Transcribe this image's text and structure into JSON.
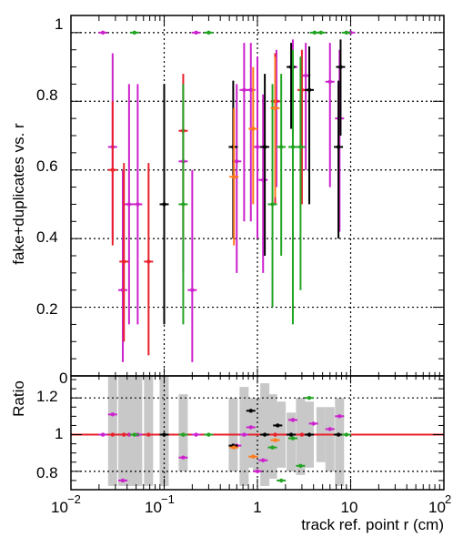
{
  "chart_data": [
    {
      "type": "scatter",
      "subtype": "error-bar",
      "ylabel": "fake+duplicates vs. r",
      "x_scale": "log",
      "xlim": [
        0.01,
        100
      ],
      "ylim": [
        0,
        1.05
      ],
      "grid": true,
      "x_tick_labels": [
        "10",
        "−2",
        "10",
        "−1",
        "1",
        "10",
        "10",
        "2"
      ],
      "y_tick_labels": [
        "0",
        "0.2",
        "0.4",
        "0.6",
        "0.8",
        "1"
      ],
      "series": [
        {
          "color": "#cc22cc",
          "points": [
            {
              "x": 0.022,
              "y": 1.0
            },
            {
              "x": 0.028,
              "y": 0.667,
              "lo": 0.4,
              "hi": 0.94
            },
            {
              "x": 0.036,
              "y": 0.25,
              "lo": 0.04,
              "hi": 0.6
            },
            {
              "x": 0.042,
              "y": 0.5,
              "lo": 0.15,
              "hi": 0.85
            },
            {
              "x": 0.052,
              "y": 0.5,
              "lo": 0.15,
              "hi": 0.85
            },
            {
              "x": 0.16,
              "y": 0.625,
              "lo": 0.3,
              "hi": 0.85
            },
            {
              "x": 0.2,
              "y": 0.25,
              "lo": 0.04,
              "hi": 0.6
            },
            {
              "x": 0.22,
              "y": 1.0
            },
            {
              "x": 0.6,
              "y": 0.625,
              "lo": 0.3,
              "hi": 0.85
            },
            {
              "x": 0.72,
              "y": 0.833,
              "lo": 0.45,
              "hi": 0.97
            },
            {
              "x": 0.85,
              "y": 0.833,
              "lo": 0.45,
              "hi": 0.97
            },
            {
              "x": 1.0,
              "y": 0.667,
              "lo": 0.4,
              "hi": 0.93
            },
            {
              "x": 1.15,
              "y": 0.571,
              "lo": 0.3,
              "hi": 0.82
            },
            {
              "x": 1.6,
              "y": 0.8,
              "lo": 0.55,
              "hi": 0.95
            },
            {
              "x": 2.4,
              "y": 0.9,
              "lo": 0.7,
              "hi": 0.98
            },
            {
              "x": 3.3,
              "y": 0.875,
              "lo": 0.6,
              "hi": 0.97
            },
            {
              "x": 6.0,
              "y": 0.857,
              "lo": 0.55,
              "hi": 0.97
            },
            {
              "x": 7.6,
              "y": 0.75,
              "lo": 0.42,
              "hi": 0.95
            },
            {
              "x": 10.0,
              "y": 1.0
            }
          ]
        },
        {
          "color": "#e8202a",
          "points": [
            {
              "x": 0.028,
              "y": 0.6,
              "lo": 0.38,
              "hi": 0.8
            },
            {
              "x": 0.037,
              "y": 0.333,
              "lo": 0.1,
              "hi": 0.62
            },
            {
              "x": 0.068,
              "y": 0.333,
              "lo": 0.06,
              "hi": 0.62
            },
            {
              "x": 0.16,
              "y": 0.714,
              "lo": 0.4,
              "hi": 0.88
            },
            {
              "x": 1.55,
              "y": 0.8,
              "lo": 0.5,
              "hi": 0.94
            },
            {
              "x": 3.0,
              "y": 0.833,
              "lo": 0.5,
              "hi": 0.95
            }
          ]
        },
        {
          "color": "#000000",
          "points": [
            {
              "x": 0.1,
              "y": 0.5,
              "lo": 0.15,
              "hi": 0.85
            },
            {
              "x": 0.55,
              "y": 0.667,
              "lo": 0.4,
              "hi": 0.86
            },
            {
              "x": 1.2,
              "y": 0.667,
              "lo": 0.35,
              "hi": 0.88
            },
            {
              "x": 2.3,
              "y": 0.9,
              "lo": 0.72,
              "hi": 0.97
            },
            {
              "x": 3.6,
              "y": 0.833,
              "lo": 0.5,
              "hi": 0.96
            },
            {
              "x": 7.4,
              "y": 0.667,
              "lo": 0.4,
              "hi": 0.86
            },
            {
              "x": 7.8,
              "y": 0.9,
              "lo": 0.7,
              "hi": 0.98
            }
          ]
        },
        {
          "color": "#22a422",
          "points": [
            {
              "x": 0.048,
              "y": 1.0
            },
            {
              "x": 0.16,
              "y": 0.5,
              "lo": 0.15,
              "hi": 0.85
            },
            {
              "x": 0.3,
              "y": 1.0
            },
            {
              "x": 1.45,
              "y": 0.5,
              "lo": 0.2,
              "hi": 0.85
            },
            {
              "x": 1.8,
              "y": 0.667,
              "lo": 0.35,
              "hi": 0.88
            },
            {
              "x": 2.4,
              "y": 0.667,
              "lo": 0.15,
              "hi": 0.95
            },
            {
              "x": 2.9,
              "y": 0.667,
              "lo": 0.25,
              "hi": 0.93
            },
            {
              "x": 4.1,
              "y": 1.0
            },
            {
              "x": 4.8,
              "y": 1.0
            },
            {
              "x": 9.0,
              "y": 1.0
            }
          ]
        },
        {
          "color": "#ff7a1a",
          "points": [
            {
              "x": 0.56,
              "y": 0.58,
              "lo": 0.38,
              "hi": 0.78
            },
            {
              "x": 0.9,
              "y": 0.72,
              "lo": 0.5,
              "hi": 0.9
            },
            {
              "x": 1.55,
              "y": 0.78,
              "lo": 0.52,
              "hi": 0.93
            }
          ]
        }
      ]
    },
    {
      "type": "scatter",
      "subtype": "ratio",
      "ylabel": "Ratio",
      "xlabel": "track ref. point r (cm)",
      "x_scale": "log",
      "xlim": [
        0.01,
        100
      ],
      "ylim": [
        0.7,
        1.32
      ],
      "grid": true,
      "reference_line": 1.0,
      "y_tick_labels": [
        "0.8",
        "1",
        "1.2"
      ],
      "band_color": "#c8c8c8",
      "bands": [
        {
          "x": 0.028,
          "lo": 0.72,
          "hi": 1.32
        },
        {
          "x": 0.036,
          "lo": 0.72,
          "hi": 1.32
        },
        {
          "x": 0.042,
          "lo": 0.72,
          "hi": 1.32
        },
        {
          "x": 0.052,
          "lo": 0.72,
          "hi": 1.32
        },
        {
          "x": 0.068,
          "lo": 0.72,
          "hi": 1.32
        },
        {
          "x": 0.1,
          "lo": 0.72,
          "hi": 1.32
        },
        {
          "x": 0.16,
          "lo": 0.8,
          "hi": 1.22
        },
        {
          "x": 0.55,
          "lo": 0.8,
          "hi": 1.2
        },
        {
          "x": 0.72,
          "lo": 0.72,
          "hi": 1.26
        },
        {
          "x": 0.85,
          "lo": 0.82,
          "hi": 1.2
        },
        {
          "x": 1.0,
          "lo": 0.8,
          "hi": 1.2
        },
        {
          "x": 1.2,
          "lo": 0.72,
          "hi": 1.28
        },
        {
          "x": 1.45,
          "lo": 0.76,
          "hi": 1.22
        },
        {
          "x": 1.8,
          "lo": 0.82,
          "hi": 1.18
        },
        {
          "x": 2.3,
          "lo": 0.8,
          "hi": 1.12
        },
        {
          "x": 2.9,
          "lo": 0.78,
          "hi": 1.2
        },
        {
          "x": 3.6,
          "lo": 0.82,
          "hi": 1.18
        },
        {
          "x": 4.8,
          "lo": 0.85,
          "hi": 1.15
        },
        {
          "x": 6.0,
          "lo": 0.8,
          "hi": 1.15
        },
        {
          "x": 7.6,
          "lo": 0.72,
          "hi": 1.2
        }
      ],
      "series": [
        {
          "color": "#cc22cc",
          "points": [
            {
              "x": 0.022,
              "y": 1.0
            },
            {
              "x": 0.028,
              "y": 1.11
            },
            {
              "x": 0.036,
              "y": 0.75
            },
            {
              "x": 0.042,
              "y": 1.0
            },
            {
              "x": 0.052,
              "y": 1.0
            },
            {
              "x": 0.16,
              "y": 0.875
            },
            {
              "x": 0.22,
              "y": 1.0
            },
            {
              "x": 0.6,
              "y": 0.94
            },
            {
              "x": 0.72,
              "y": 1.0
            },
            {
              "x": 0.85,
              "y": 1.04
            },
            {
              "x": 1.0,
              "y": 0.8
            },
            {
              "x": 1.15,
              "y": 0.86
            },
            {
              "x": 2.4,
              "y": 1.08
            },
            {
              "x": 4.0,
              "y": 1.06
            },
            {
              "x": 6.0,
              "y": 1.03
            },
            {
              "x": 7.6,
              "y": 1.1
            }
          ]
        },
        {
          "color": "#e8202a",
          "points": [
            {
              "x": 0.028,
              "y": 1.0
            },
            {
              "x": 0.037,
              "y": 1.0
            },
            {
              "x": 0.068,
              "y": 1.0
            },
            {
              "x": 0.16,
              "y": 1.0
            },
            {
              "x": 1.55,
              "y": 1.0
            },
            {
              "x": 3.0,
              "y": 1.0
            }
          ]
        },
        {
          "color": "#000000",
          "points": [
            {
              "x": 0.1,
              "y": 1.0
            },
            {
              "x": 0.55,
              "y": 0.94
            },
            {
              "x": 0.85,
              "y": 1.13
            },
            {
              "x": 1.2,
              "y": 1.0
            },
            {
              "x": 1.65,
              "y": 1.05
            },
            {
              "x": 2.3,
              "y": 1.0
            },
            {
              "x": 3.6,
              "y": 1.0
            },
            {
              "x": 7.4,
              "y": 1.0
            }
          ]
        },
        {
          "color": "#22a422",
          "points": [
            {
              "x": 0.048,
              "y": 1.0
            },
            {
              "x": 0.16,
              "y": 1.0
            },
            {
              "x": 0.3,
              "y": 1.0
            },
            {
              "x": 1.45,
              "y": 0.93
            },
            {
              "x": 1.8,
              "y": 0.75
            },
            {
              "x": 2.4,
              "y": 0.98
            },
            {
              "x": 2.9,
              "y": 0.83
            },
            {
              "x": 3.6,
              "y": 1.2
            },
            {
              "x": 9.0,
              "y": 1.0
            }
          ]
        },
        {
          "color": "#ff7a1a",
          "points": [
            {
              "x": 0.56,
              "y": 0.93
            },
            {
              "x": 0.9,
              "y": 0.88
            },
            {
              "x": 1.55,
              "y": 0.97
            }
          ]
        }
      ]
    }
  ]
}
